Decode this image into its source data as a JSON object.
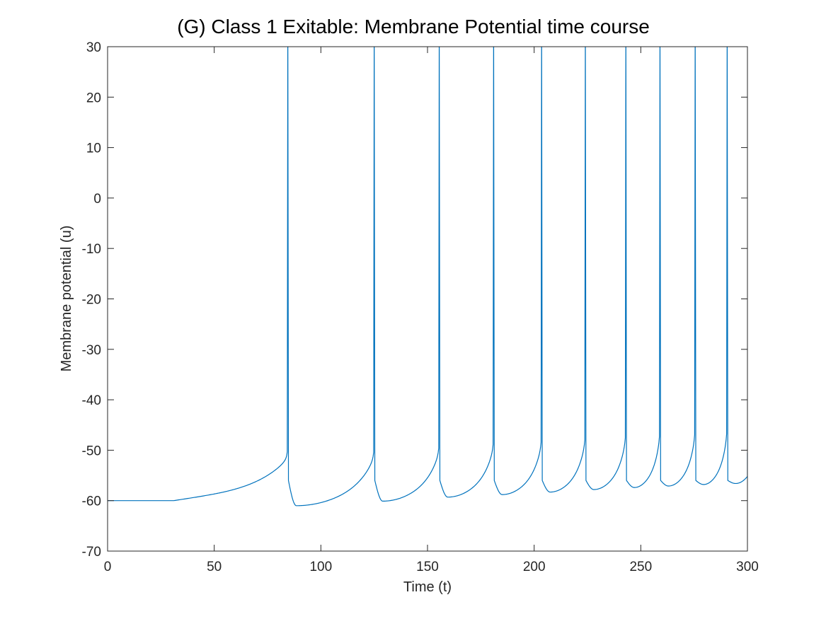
{
  "chart_data": {
    "type": "line",
    "title": "(G) Class 1 Exitable: Membrane Potential time course",
    "xlabel": "Time (t)",
    "ylabel": "Membrane potential (u)",
    "xlim": [
      0,
      300
    ],
    "ylim": [
      -70,
      30
    ],
    "xticks": [
      0,
      50,
      100,
      150,
      200,
      250,
      300
    ],
    "yticks": [
      -70,
      -60,
      -50,
      -40,
      -30,
      -20,
      -10,
      0,
      10,
      20,
      30
    ],
    "grid": false,
    "box": true,
    "line_color": "#0072BD",
    "series": [
      {
        "baseline": -60,
        "stimulus_onset_t": 31,
        "spike_times": [
          84.5,
          125,
          155.5,
          181,
          203.5,
          224,
          243,
          259,
          275.5,
          290.5
        ],
        "spike_peak": 30,
        "post_spike_reset": -56,
        "trough_values": [
          -61,
          -60.1,
          -59.3,
          -58.8,
          -58.3,
          -57.8,
          -57.4,
          -57.1,
          -56.8,
          -56.6
        ],
        "final_value": -50.5
      }
    ]
  }
}
